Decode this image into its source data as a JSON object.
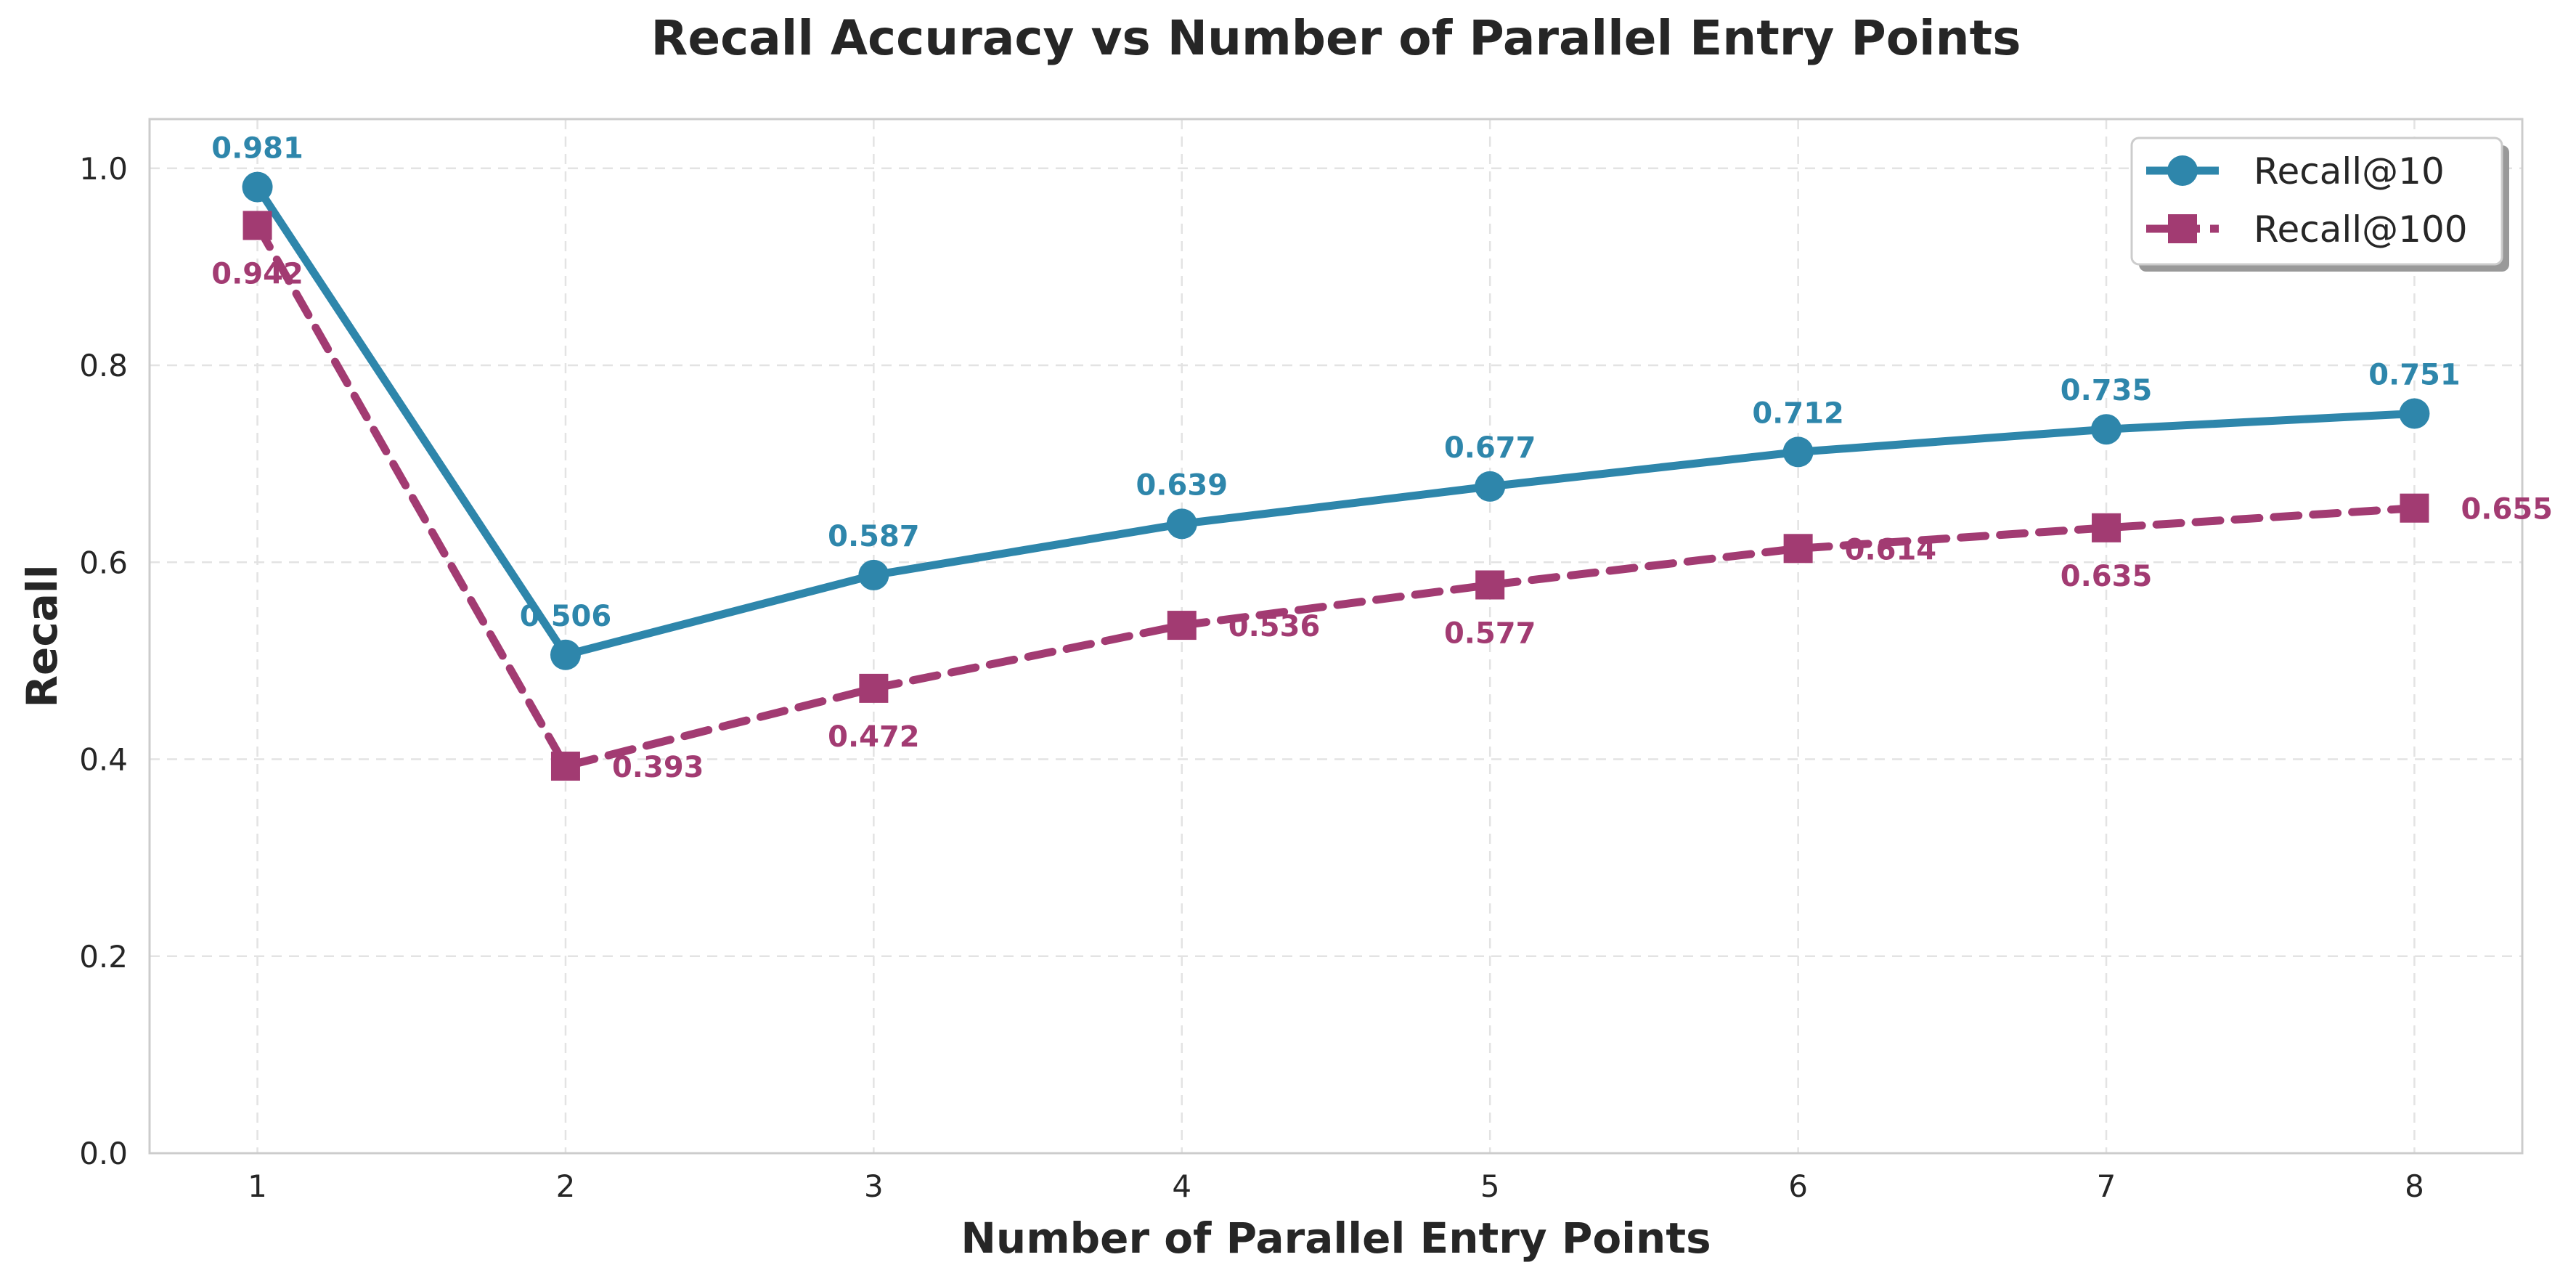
{
  "chart_data": {
    "type": "line",
    "title": "Recall Accuracy vs Number of Parallel Entry Points",
    "xlabel": "Number of Parallel Entry Points",
    "ylabel": "Recall",
    "x": [
      1,
      2,
      3,
      4,
      5,
      6,
      7,
      8
    ],
    "xticks": [
      "1",
      "2",
      "3",
      "4",
      "5",
      "6",
      "7",
      "8"
    ],
    "yticks": [
      "0.0",
      "0.2",
      "0.4",
      "0.6",
      "0.8",
      "1.0"
    ],
    "xlim": [
      0.65,
      8.35
    ],
    "ylim": [
      0.0,
      1.05
    ],
    "grid": true,
    "legend_position": "top-right",
    "series": [
      {
        "name": "Recall@10",
        "values": [
          0.981,
          0.506,
          0.587,
          0.639,
          0.677,
          0.712,
          0.735,
          0.751
        ],
        "labels": [
          "0.981",
          "0.506",
          "0.587",
          "0.639",
          "0.677",
          "0.712",
          "0.735",
          "0.751"
        ],
        "color": "#2e86ab",
        "marker": "circle",
        "linestyle": "solid"
      },
      {
        "name": "Recall@100",
        "values": [
          0.942,
          0.393,
          0.472,
          0.536,
          0.577,
          0.614,
          0.635,
          0.655
        ],
        "labels": [
          "0.942",
          "0.393",
          "0.472",
          "0.536",
          "0.577",
          "0.614",
          "0.635",
          "0.655"
        ],
        "color": "#a23b72",
        "marker": "square",
        "linestyle": "dashed"
      }
    ]
  }
}
